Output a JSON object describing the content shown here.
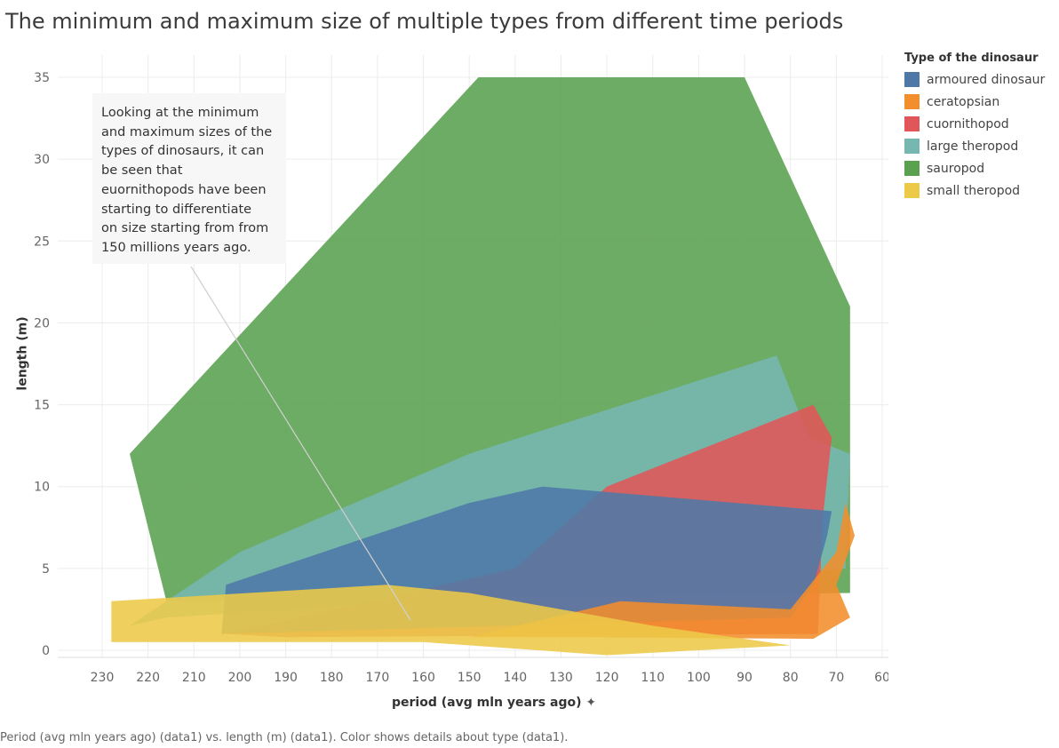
{
  "title": "The minimum and maximum size of multiple types from different time periods",
  "caption": "Period (avg mln years ago) (data1) vs. length (m) (data1).  Color shows details about type (data1).",
  "annotation": "Looking at the minimum\nand maximum sizes of the\ntypes of dinosaurs, it can\nbe seen that\neuornithopods have been\nstarting to differentiate\non size starting from from\n150 millions years ago.",
  "legend": {
    "title": "Type of the dinosaur",
    "items": [
      {
        "label": "armoured dinosaur",
        "color": "#4e79a7"
      },
      {
        "label": "ceratopsian",
        "color": "#f28e2b"
      },
      {
        "label": "cuornithopod",
        "color": "#e15759"
      },
      {
        "label": "large theropod",
        "color": "#76b7b2"
      },
      {
        "label": "sauropod",
        "color": "#59a14f"
      },
      {
        "label": "small theropod",
        "color": "#edc948"
      }
    ]
  },
  "chart_data": {
    "type": "area",
    "xlabel": "period (avg mln years ago)",
    "ylabel": "length (m)",
    "xlim": [
      240,
      58
    ],
    "ylim": [
      -0.5,
      36
    ],
    "x_ticks": [
      230,
      220,
      210,
      200,
      190,
      180,
      170,
      160,
      150,
      140,
      130,
      120,
      110,
      100,
      90,
      80,
      70,
      60
    ],
    "y_ticks": [
      0,
      5,
      10,
      15,
      20,
      25,
      30,
      35
    ],
    "grid": true,
    "legend_position": "right",
    "series": [
      {
        "name": "sauropod",
        "color": "#59a14f",
        "outline": [
          [
            224,
            12
          ],
          [
            148,
            35
          ],
          [
            90,
            35
          ],
          [
            67,
            21
          ],
          [
            67,
            3.5
          ],
          [
            216,
            3
          ]
        ]
      },
      {
        "name": "large theropod",
        "color": "#76b7b2",
        "outline": [
          [
            224,
            1.5
          ],
          [
            200,
            6
          ],
          [
            150,
            12
          ],
          [
            83,
            18
          ],
          [
            76,
            13
          ],
          [
            67,
            12
          ],
          [
            68,
            5
          ],
          [
            130,
            3.5
          ],
          [
            216,
            2
          ]
        ]
      },
      {
        "name": "cuornithopod",
        "color": "#e15759",
        "outline": [
          [
            203,
            1
          ],
          [
            140,
            5
          ],
          [
            120,
            10
          ],
          [
            75,
            15
          ],
          [
            71,
            13
          ],
          [
            73,
            8
          ],
          [
            74,
            1
          ],
          [
            190,
            0.8
          ]
        ]
      },
      {
        "name": "armoured dinosaur",
        "color": "#4e79a7",
        "outline": [
          [
            203,
            4
          ],
          [
            150,
            9
          ],
          [
            134,
            10
          ],
          [
            71,
            8.5
          ],
          [
            72,
            7
          ],
          [
            75,
            4
          ],
          [
            80,
            2
          ],
          [
            204,
            1
          ]
        ]
      },
      {
        "name": "ceratopsian",
        "color": "#f28e2b",
        "outline": [
          [
            150,
            0.8
          ],
          [
            117,
            3
          ],
          [
            80,
            2.5
          ],
          [
            70,
            6
          ],
          [
            68,
            9
          ],
          [
            66,
            7
          ],
          [
            70,
            4
          ],
          [
            67,
            2
          ],
          [
            75,
            0.7
          ],
          [
            130,
            0.8
          ]
        ]
      },
      {
        "name": "small theropod",
        "color": "#edc948",
        "outline": [
          [
            228,
            3
          ],
          [
            168,
            4
          ],
          [
            150,
            3.5
          ],
          [
            110,
            1.5
          ],
          [
            80,
            0.3
          ],
          [
            120,
            -0.3
          ],
          [
            160,
            0.5
          ],
          [
            228,
            0.5
          ]
        ]
      }
    ]
  }
}
